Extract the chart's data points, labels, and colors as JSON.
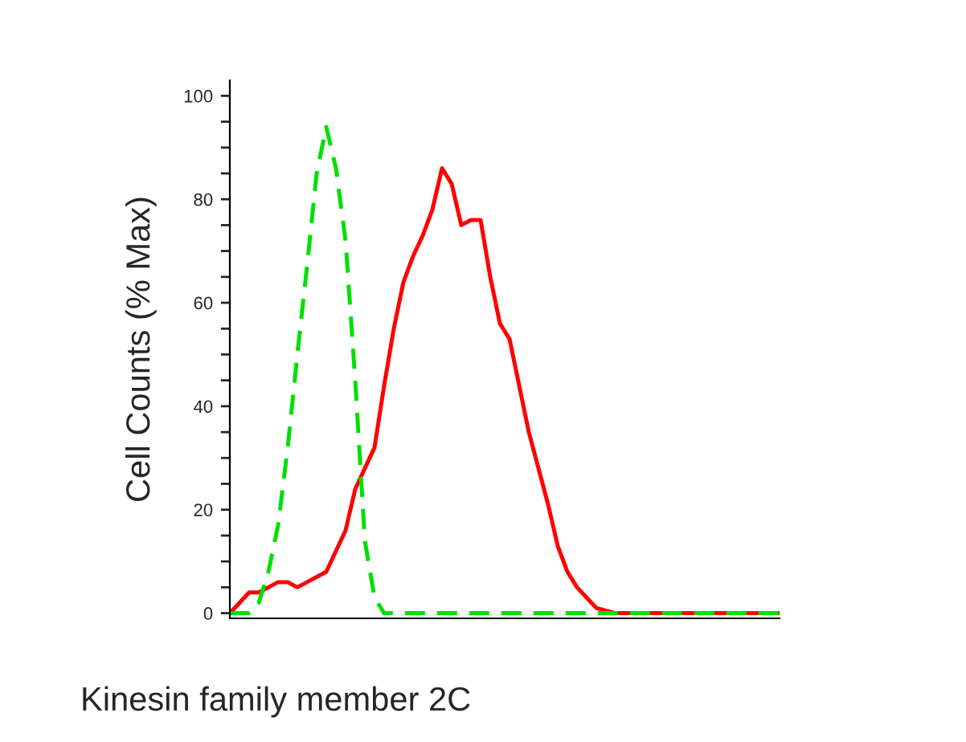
{
  "chart_data": {
    "type": "line",
    "xlabel": "Kinesin family member 2C",
    "ylabel": "Cell Counts (% Max)",
    "categories": [
      null,
      null,
      null,
      null,
      null,
      null,
      null,
      null,
      null,
      null,
      null,
      null,
      null,
      null,
      null,
      null,
      null,
      null,
      null,
      null,
      null,
      null,
      null,
      null,
      null,
      null,
      null,
      null,
      null,
      null,
      null,
      null,
      null,
      null,
      null,
      null,
      null,
      null,
      null,
      null,
      null,
      null,
      null,
      null,
      null,
      null,
      null,
      null,
      null,
      null,
      null,
      null,
      null,
      null,
      null,
      null,
      null,
      null
    ],
    "series": [
      {
        "color": "#00e000",
        "line_style": "dashed",
        "values": [
          0,
          0,
          0,
          2,
          8,
          17,
          32,
          50,
          67,
          85,
          94,
          86,
          72,
          45,
          14,
          3,
          0,
          0,
          0,
          0,
          0,
          0,
          0,
          0,
          0,
          0,
          0,
          0,
          0,
          0,
          0,
          0,
          0,
          0,
          0,
          0,
          0,
          0,
          0,
          0,
          0,
          0,
          0,
          0,
          0,
          0,
          0,
          0,
          0,
          0,
          0,
          0,
          0,
          0,
          0,
          0,
          0,
          0
        ]
      },
      {
        "color": "#ff0000",
        "line_style": "solid",
        "values": [
          0,
          2,
          4,
          4,
          5,
          6,
          6,
          5,
          6,
          7,
          8,
          12,
          16,
          24,
          28,
          32,
          44,
          55,
          64,
          69,
          73,
          78,
          86,
          83,
          75,
          76,
          76,
          65,
          56,
          53,
          44,
          35,
          28,
          21,
          13,
          8,
          5,
          3,
          1,
          0.5,
          0,
          0,
          0,
          0,
          0,
          0,
          0,
          0,
          0,
          0,
          0,
          0,
          0,
          0,
          0,
          0,
          0,
          0
        ]
      }
    ],
    "ylim": [
      -1,
      103
    ],
    "yticks": [
      0,
      {
        "value": 5,
        "label": null
      },
      {
        "value": 10,
        "label": null
      },
      {
        "value": 15,
        "label": null
      },
      20,
      {
        "value": 25,
        "label": null
      },
      {
        "value": 30,
        "label": null
      },
      {
        "value": 35,
        "label": null
      },
      40,
      {
        "value": 45,
        "label": null
      },
      {
        "value": 50,
        "label": null
      },
      {
        "value": 55,
        "label": null
      },
      60,
      {
        "value": 65,
        "label": null
      },
      {
        "value": 70,
        "label": null
      },
      {
        "value": 75,
        "label": null
      },
      80,
      {
        "value": 85,
        "label": null
      },
      {
        "value": 90,
        "label": null
      },
      {
        "value": 95,
        "label": null
      },
      100
    ],
    "tick_labels": "y",
    "grid": false,
    "legend": false
  }
}
